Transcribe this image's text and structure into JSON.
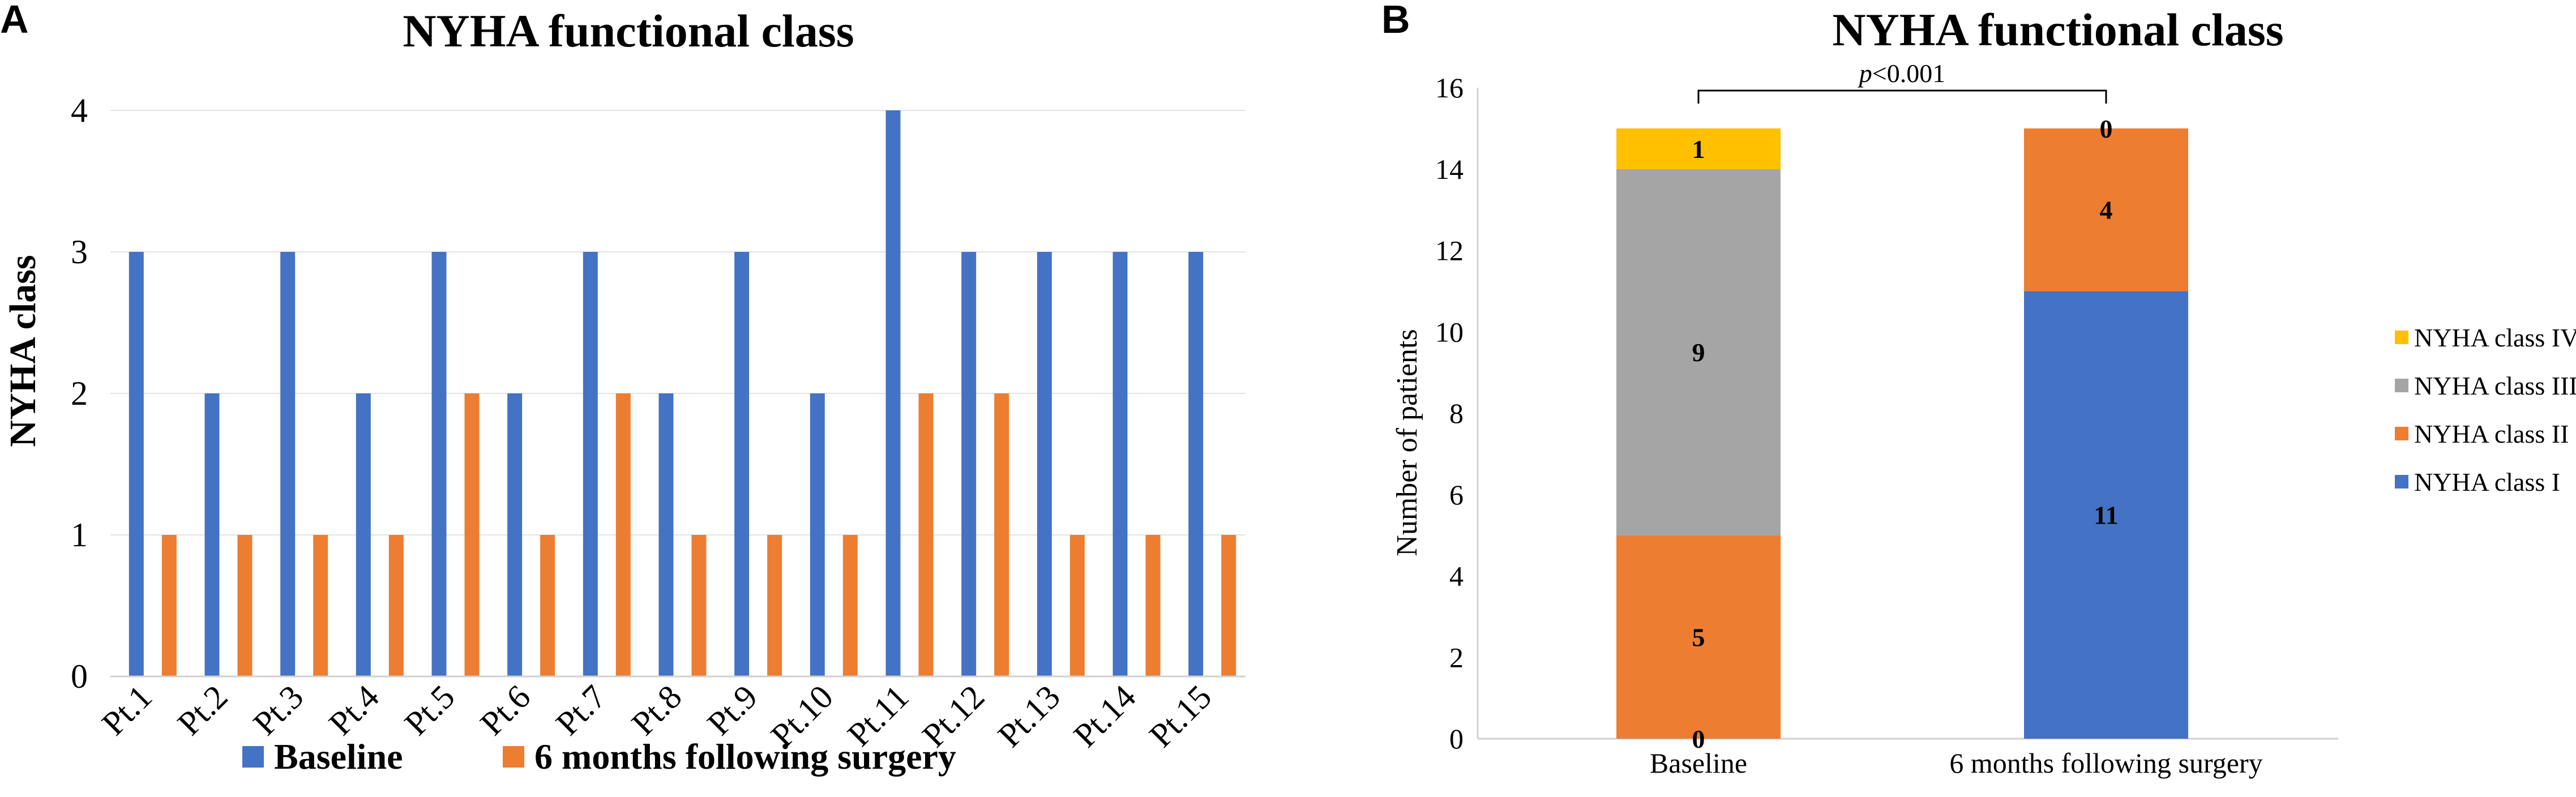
{
  "panel_a_letter": "A",
  "panel_b_letter": "B",
  "chart_data": [
    {
      "type": "bar",
      "title": "NYHA functional class",
      "xlabel": "",
      "ylabel": "NYHA class",
      "ylim": [
        0,
        4
      ],
      "yticks": [
        "0",
        "1",
        "2",
        "3",
        "4"
      ],
      "categories": [
        "Pt.1",
        "Pt.2",
        "Pt.3",
        "Pt.4",
        "Pt.5",
        "Pt.6",
        "Pt.7",
        "Pt.8",
        "Pt.9",
        "Pt.10",
        "Pt.11",
        "Pt.12",
        "Pt.13",
        "Pt.14",
        "Pt.15"
      ],
      "series": [
        {
          "name": "Baseline",
          "color": "#4472C4",
          "values": [
            3,
            2,
            3,
            2,
            3,
            2,
            3,
            2,
            3,
            2,
            4,
            3,
            3,
            3,
            3
          ]
        },
        {
          "name": "6 months following surgery",
          "color": "#ED7D31",
          "values": [
            1,
            1,
            1,
            1,
            2,
            1,
            2,
            1,
            1,
            1,
            2,
            2,
            1,
            1,
            1
          ]
        }
      ],
      "legend_position": "bottom"
    },
    {
      "type": "stacked-bar",
      "title": "NYHA functional class",
      "xlabel": "",
      "ylabel": "Number of patients",
      "ylim": [
        0,
        16
      ],
      "yticks": [
        "0",
        "2",
        "4",
        "6",
        "8",
        "10",
        "12",
        "14",
        "16"
      ],
      "categories": [
        "Baseline",
        "6 months following surgery"
      ],
      "series": [
        {
          "name": "NYHA class I",
          "color": "#4472C4",
          "values": [
            0,
            11
          ],
          "labels": [
            "0",
            "11"
          ]
        },
        {
          "name": "NYHA class II",
          "color": "#ED7D31",
          "values": [
            5,
            4
          ],
          "labels": [
            "5",
            "4"
          ]
        },
        {
          "name": "NYHA class III",
          "color": "#A5A5A5",
          "values": [
            9,
            0
          ],
          "labels": [
            "9",
            ""
          ]
        },
        {
          "name": "NYHA class IV",
          "color": "#FFC000",
          "values": [
            1,
            0
          ],
          "labels": [
            "1",
            "0"
          ]
        }
      ],
      "annotation": {
        "p_italic": "p",
        "p_rest": "<0.001"
      },
      "legend_position": "right"
    }
  ]
}
